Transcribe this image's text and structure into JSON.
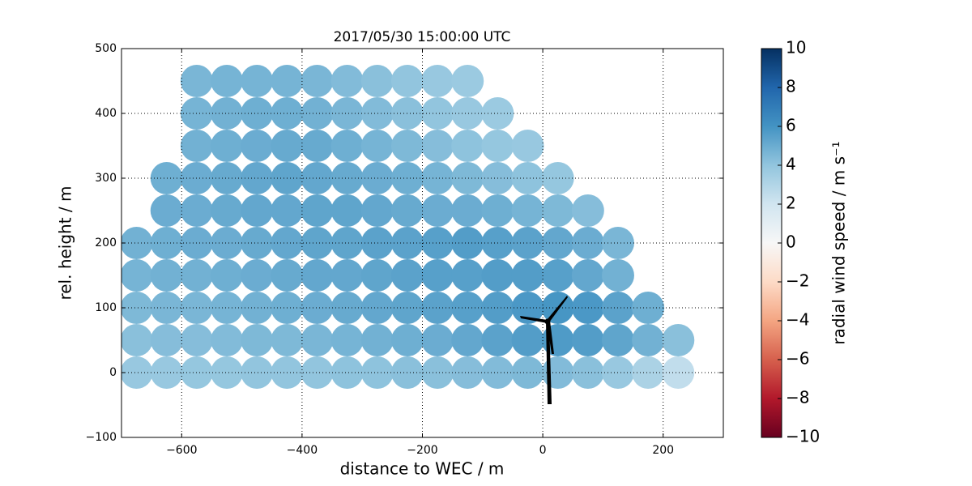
{
  "chart_data": {
    "type": "scatter",
    "title": "2017/05/30 15:00:00 UTC",
    "x_label": "distance to WEC / m",
    "y_label": "rel. height / m",
    "colorbar_label": "radial wind speed / m s⁻¹",
    "xlim": [
      -700,
      300
    ],
    "xticks": [
      {
        "value": -600,
        "label": "−600"
      },
      {
        "value": -400,
        "label": "−400"
      },
      {
        "value": -200,
        "label": "−200"
      },
      0,
      200
    ],
    "ylim": [
      -100,
      500
    ],
    "yticks": [
      {
        "value": -100,
        "label": "−100"
      },
      0,
      100,
      200,
      300,
      400,
      500
    ],
    "grid": true,
    "clim": [
      -10,
      10
    ],
    "cticks": [
      {
        "value": -10,
        "label": "−10"
      },
      {
        "value": -8,
        "label": "−8"
      },
      {
        "value": -6,
        "label": "−6"
      },
      {
        "value": -4,
        "label": "−4"
      },
      {
        "value": -2,
        "label": "−2"
      },
      0,
      2,
      4,
      6,
      8,
      10
    ],
    "colormap": [
      "#67001f",
      "#b2182b",
      "#d6604d",
      "#f4a582",
      "#fddbc7",
      "#f7f7f7",
      "#d1e5f0",
      "#92c5de",
      "#4393c3",
      "#2166ac",
      "#053061"
    ],
    "x": [
      -675,
      -625,
      -575,
      -525,
      -475,
      -425,
      -375,
      -325,
      -275,
      -225,
      -175,
      -125,
      -75,
      -25,
      25,
      75,
      125,
      175,
      225,
      -675,
      -625,
      -575,
      -525,
      -475,
      -425,
      -375,
      -325,
      -275,
      -225,
      -175,
      -125,
      -75,
      -25,
      25,
      75,
      125,
      175,
      225,
      -675,
      -625,
      -575,
      -525,
      -475,
      -425,
      -375,
      -325,
      -275,
      -225,
      -175,
      -125,
      -75,
      -25,
      25,
      75,
      125,
      175,
      -675,
      -625,
      -575,
      -525,
      -475,
      -425,
      -375,
      -325,
      -275,
      -225,
      -175,
      -125,
      -75,
      -25,
      25,
      75,
      125,
      -675,
      -625,
      -575,
      -525,
      -475,
      -425,
      -375,
      -325,
      -275,
      -225,
      -175,
      -125,
      -75,
      -25,
      25,
      75,
      125,
      -625,
      -575,
      -525,
      -475,
      -425,
      -375,
      -325,
      -275,
      -225,
      -175,
      -125,
      -75,
      -25,
      25,
      75,
      -625,
      -575,
      -525,
      -475,
      -425,
      -375,
      -325,
      -275,
      -225,
      -175,
      -125,
      -75,
      -25,
      25,
      -575,
      -525,
      -475,
      -425,
      -375,
      -325,
      -275,
      -225,
      -175,
      -125,
      -75,
      -25,
      -575,
      -525,
      -475,
      -425,
      -375,
      -325,
      -275,
      -225,
      -175,
      -125,
      -75,
      -575,
      -525,
      -475,
      -425,
      -375,
      -325,
      -275,
      -225,
      -175,
      -125
    ],
    "y": [
      0,
      0,
      0,
      0,
      0,
      0,
      0,
      0,
      0,
      0,
      0,
      0,
      0,
      0,
      0,
      0,
      0,
      0,
      0,
      50,
      50,
      50,
      50,
      50,
      50,
      50,
      50,
      50,
      50,
      50,
      50,
      50,
      50,
      50,
      50,
      50,
      50,
      50,
      100,
      100,
      100,
      100,
      100,
      100,
      100,
      100,
      100,
      100,
      100,
      100,
      100,
      100,
      100,
      100,
      100,
      100,
      150,
      150,
      150,
      150,
      150,
      150,
      150,
      150,
      150,
      150,
      150,
      150,
      150,
      150,
      150,
      150,
      150,
      200,
      200,
      200,
      200,
      200,
      200,
      200,
      200,
      200,
      200,
      200,
      200,
      200,
      200,
      200,
      200,
      200,
      250,
      250,
      250,
      250,
      250,
      250,
      250,
      250,
      250,
      250,
      250,
      250,
      250,
      250,
      250,
      300,
      300,
      300,
      300,
      300,
      300,
      300,
      300,
      300,
      300,
      300,
      300,
      300,
      300,
      350,
      350,
      350,
      350,
      350,
      350,
      350,
      350,
      350,
      350,
      350,
      350,
      400,
      400,
      400,
      400,
      400,
      400,
      400,
      400,
      400,
      400,
      400,
      450,
      450,
      450,
      450,
      450,
      450,
      450,
      450,
      450,
      450
    ],
    "values": [
      3.8,
      3.8,
      3.9,
      3.9,
      4.0,
      4.0,
      4.0,
      4.1,
      4.1,
      4.2,
      4.2,
      4.3,
      4.4,
      4.5,
      4.4,
      4.2,
      3.8,
      3.2,
      2.5,
      4.2,
      4.3,
      4.3,
      4.4,
      4.5,
      4.5,
      4.6,
      4.7,
      4.8,
      4.9,
      5.0,
      5.2,
      5.4,
      5.6,
      5.7,
      5.6,
      5.3,
      4.8,
      4.2,
      4.5,
      4.6,
      4.6,
      4.7,
      4.8,
      4.9,
      5.0,
      5.1,
      5.2,
      5.3,
      5.4,
      5.5,
      5.6,
      5.8,
      5.9,
      5.8,
      5.4,
      4.9,
      4.7,
      4.8,
      4.8,
      4.9,
      5.0,
      5.1,
      5.2,
      5.2,
      5.3,
      5.4,
      5.5,
      5.5,
      5.6,
      5.6,
      5.5,
      5.2,
      4.8,
      4.8,
      4.9,
      5.0,
      5.0,
      5.1,
      5.2,
      5.3,
      5.3,
      5.4,
      5.4,
      5.5,
      5.6,
      5.5,
      5.4,
      5.2,
      5.0,
      4.6,
      5.0,
      5.0,
      5.1,
      5.2,
      5.2,
      5.3,
      5.3,
      5.2,
      5.1,
      5.0,
      5.0,
      4.9,
      4.7,
      4.5,
      4.3,
      4.9,
      5.0,
      5.1,
      5.2,
      5.3,
      5.2,
      5.1,
      5.0,
      4.9,
      4.7,
      4.5,
      4.3,
      4.1,
      3.9,
      4.8,
      4.9,
      5.0,
      5.1,
      5.1,
      4.9,
      4.7,
      4.5,
      4.3,
      4.1,
      3.9,
      3.8,
      4.7,
      4.8,
      4.9,
      4.9,
      4.8,
      4.6,
      4.4,
      4.2,
      4.0,
      3.8,
      3.7,
      4.6,
      4.7,
      4.7,
      4.7,
      4.6,
      4.4,
      4.2,
      4.0,
      3.8,
      3.7
    ]
  }
}
